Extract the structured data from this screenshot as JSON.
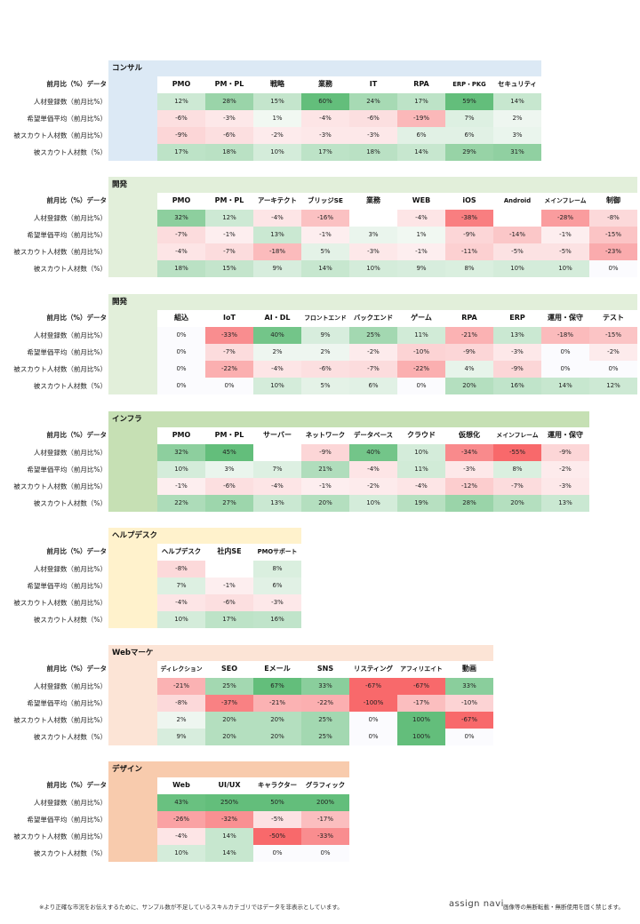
{
  "row_header": "前月比（%）データ",
  "row_labels": [
    "人材登録数（前月比%）",
    "希望単価平均（前月比%）",
    "被スカウト人材数（前月比%）",
    "被スカウト人材数（%）"
  ],
  "sections": [
    {
      "title": "コンサル",
      "color": "#dce9f5",
      "columns": [
        "PMO",
        "PM・PL",
        "戦略",
        "業務",
        "IT",
        "RPA",
        "ERP・PKG",
        "セキュリティ"
      ],
      "rows": [
        [
          "12%",
          "28%",
          "15%",
          "60%",
          "24%",
          "17%",
          "59%",
          "14%"
        ],
        [
          "-6%",
          "-3%",
          "1%",
          "-4%",
          "-6%",
          "-19%",
          "7%",
          "2%"
        ],
        [
          "-9%",
          "-6%",
          "-2%",
          "-3%",
          "-3%",
          "6%",
          "6%",
          "3%"
        ],
        [
          "17%",
          "18%",
          "10%",
          "17%",
          "18%",
          "14%",
          "29%",
          "31%"
        ]
      ]
    },
    {
      "title": "開発",
      "color": "#e2efda",
      "columns": [
        "PMO",
        "PM・PL",
        "アーキテクト",
        "ブリッジSE",
        "業務",
        "WEB",
        "iOS",
        "Android",
        "メインフレーム",
        "制御"
      ],
      "rows": [
        [
          "32%",
          "12%",
          "-4%",
          "-16%",
          null,
          "-4%",
          "-38%",
          null,
          "-28%",
          "-8%"
        ],
        [
          "-7%",
          "-1%",
          "13%",
          "-1%",
          "3%",
          "1%",
          "-9%",
          "-14%",
          "-1%",
          "-15%"
        ],
        [
          "-4%",
          "-7%",
          "-18%",
          "5%",
          "-3%",
          "-1%",
          "-11%",
          "-5%",
          "-5%",
          "-23%"
        ],
        [
          "18%",
          "15%",
          "9%",
          "14%",
          "10%",
          "9%",
          "8%",
          "10%",
          "10%",
          "0%"
        ]
      ]
    },
    {
      "title": "開発",
      "color": "#e2efda",
      "columns": [
        "組込",
        "IoT",
        "AI・DL",
        "フロントエンド",
        "バックエンド",
        "ゲーム",
        "RPA",
        "ERP",
        "運用・保守",
        "テスト"
      ],
      "rows": [
        [
          "0%",
          "-33%",
          "40%",
          "9%",
          "25%",
          "11%",
          "-21%",
          "13%",
          "-18%",
          "-15%"
        ],
        [
          "0%",
          "-7%",
          "2%",
          "2%",
          "-2%",
          "-10%",
          "-9%",
          "-3%",
          "0%",
          "-2%"
        ],
        [
          "0%",
          "-22%",
          "-4%",
          "-6%",
          "-7%",
          "-22%",
          "4%",
          "-9%",
          "0%",
          "0%"
        ],
        [
          "0%",
          "0%",
          "10%",
          "5%",
          "6%",
          "0%",
          "20%",
          "16%",
          "14%",
          "12%"
        ]
      ]
    },
    {
      "title": "インフラ",
      "color": "#c6e0b4",
      "columns": [
        "PMO",
        "PM・PL",
        "サーバー",
        "ネットワーク",
        "データベース",
        "クラウド",
        "仮想化",
        "メインフレーム",
        "運用・保守"
      ],
      "rows": [
        [
          "32%",
          "45%",
          null,
          "-9%",
          "40%",
          "10%",
          "-34%",
          "-55%",
          "-9%"
        ],
        [
          "10%",
          "3%",
          "7%",
          "21%",
          "-4%",
          "11%",
          "-3%",
          "8%",
          "-2%"
        ],
        [
          "-1%",
          "-6%",
          "-4%",
          "-1%",
          "-2%",
          "-4%",
          "-12%",
          "-7%",
          "-3%"
        ],
        [
          "22%",
          "27%",
          "13%",
          "20%",
          "10%",
          "19%",
          "28%",
          "20%",
          "13%"
        ]
      ]
    },
    {
      "title": "ヘルプデスク",
      "color": "#fff2cc",
      "columns": [
        "ヘルプデスク",
        "社内SE",
        "PMOサポート"
      ],
      "rows": [
        [
          "-8%",
          null,
          "8%"
        ],
        [
          "7%",
          "-1%",
          "6%"
        ],
        [
          "-4%",
          "-6%",
          "-3%"
        ],
        [
          "10%",
          "17%",
          "16%"
        ]
      ]
    },
    {
      "title": "Webマーケ",
      "color": "#fce4d6",
      "columns": [
        "ディレクション",
        "SEO",
        "Eメール",
        "SNS",
        "リスティング",
        "アフィリエイト",
        "動画"
      ],
      "rows": [
        [
          "-21%",
          "25%",
          "67%",
          "33%",
          "-67%",
          "-67%",
          "33%"
        ],
        [
          "-8%",
          "-37%",
          "-21%",
          "-22%",
          "-100%",
          "-17%",
          "-10%"
        ],
        [
          "2%",
          "20%",
          "20%",
          "25%",
          "0%",
          "100%",
          "-67%"
        ],
        [
          "9%",
          "20%",
          "20%",
          "25%",
          "0%",
          "100%",
          "0%"
        ]
      ]
    },
    {
      "title": "デザイン",
      "color": "#f8cbad",
      "columns": [
        "Web",
        "UI/UX",
        "キャラクター",
        "グラフィック"
      ],
      "rows": [
        [
          "43%",
          "250%",
          "50%",
          "200%"
        ],
        [
          "-26%",
          "-32%",
          "-5%",
          "-17%"
        ],
        [
          "-4%",
          "14%",
          "-50%",
          "-33%"
        ],
        [
          "10%",
          "14%",
          "0%",
          "0%"
        ]
      ]
    }
  ],
  "footer": {
    "note": "※より正確な市況をお伝えするために、サンプル数が不足しているスキルカテゴリではデータを非表示としています。",
    "brand": "assign navi",
    "copyright": "画像等の無断転載・無断使用を固く禁じます。"
  }
}
